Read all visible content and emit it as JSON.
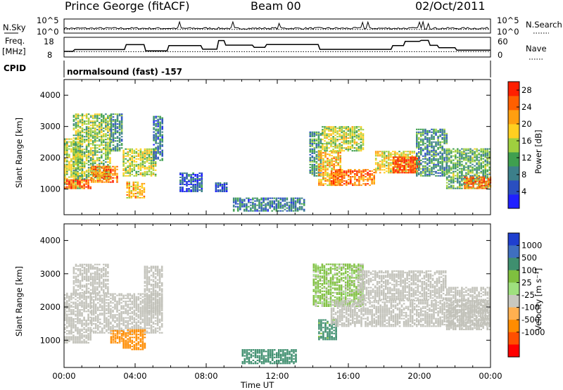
{
  "header": {
    "title": "Prince George (fitACF)",
    "beam": "Beam 00",
    "date": "02/Oct/2011"
  },
  "noise_panel": {
    "left_label": "N.Sky",
    "right_label": "N.Search",
    "left_top_tick": "10^5",
    "left_bottom_tick": "10^0",
    "right_top_tick": "10^5",
    "right_bottom_tick": "10^0",
    "scale": "log",
    "sky_level": 1.5,
    "search_level": 1.0,
    "spike_hours": [
      6.5,
      9.5,
      12.1,
      16.8,
      17.1,
      20.0,
      20.2,
      20.5
    ]
  },
  "freq_panel": {
    "left_label": "Freq.",
    "left_unit": "[MHz]",
    "left_top_tick": "18",
    "left_bottom_tick": "8",
    "right_top_tick": "60",
    "right_bottom_tick": "0",
    "right_label": "Nave",
    "freq_range_mhz": [
      8,
      18
    ],
    "nave_range": [
      0,
      60
    ],
    "freq_steps": [
      {
        "t": 0.0,
        "f": 10.5
      },
      {
        "t": 0.5,
        "f": 10.5
      },
      {
        "t": 0.6,
        "f": 11.6
      },
      {
        "t": 1.1,
        "f": 11.6
      },
      {
        "t": 3.4,
        "f": 11.6
      },
      {
        "t": 3.5,
        "f": 14.5
      },
      {
        "t": 4.5,
        "f": 14.5
      },
      {
        "t": 4.6,
        "f": 10.8
      },
      {
        "t": 5.8,
        "f": 10.8
      },
      {
        "t": 5.9,
        "f": 13.9
      },
      {
        "t": 7.7,
        "f": 13.9
      },
      {
        "t": 7.8,
        "f": 11.8
      },
      {
        "t": 8.6,
        "f": 11.8
      },
      {
        "t": 8.7,
        "f": 16.9
      },
      {
        "t": 9.0,
        "f": 16.9
      },
      {
        "t": 9.1,
        "f": 14.2
      },
      {
        "t": 10.6,
        "f": 14.2
      },
      {
        "t": 10.7,
        "f": 12.9
      },
      {
        "t": 11.3,
        "f": 12.9
      },
      {
        "t": 11.4,
        "f": 14.6
      },
      {
        "t": 14.3,
        "f": 14.6
      },
      {
        "t": 14.4,
        "f": 11.7
      },
      {
        "t": 18.4,
        "f": 11.7
      },
      {
        "t": 18.5,
        "f": 13.9
      },
      {
        "t": 19.1,
        "f": 13.9
      },
      {
        "t": 19.2,
        "f": 16.4
      },
      {
        "t": 20.0,
        "f": 16.4
      },
      {
        "t": 20.1,
        "f": 17.0
      },
      {
        "t": 20.5,
        "f": 17.0
      },
      {
        "t": 20.6,
        "f": 14.1
      },
      {
        "t": 21.0,
        "f": 14.1
      },
      {
        "t": 21.1,
        "f": 12.7
      },
      {
        "t": 22.0,
        "f": 12.7
      },
      {
        "t": 22.1,
        "f": 11.2
      },
      {
        "t": 24.0,
        "f": 11.2
      }
    ],
    "nave_level": 14
  },
  "cpid_panel": {
    "label": "CPID",
    "value": "normalsound (fast) -157"
  },
  "colors": {
    "power_scale": [
      "#1f1fff",
      "#2a4fc0",
      "#3c7f8a",
      "#3f9f4f",
      "#9fcf3f",
      "#ffcf20",
      "#ff9f10",
      "#ff5f00",
      "#ff1f00"
    ],
    "velocity_scale": [
      "#1f3fcf",
      "#3f6fbf",
      "#3f8f6f",
      "#7fbf3f",
      "#9fe07f",
      "#c8c8c0",
      "#ffb050",
      "#ff8c00",
      "#ff4f00",
      "#ff0000"
    ],
    "ground_scatter": "#c2c2ba"
  },
  "chart_data": [
    {
      "type": "heatmap",
      "title": "Power",
      "xlabel": "",
      "ylabel": "Slant Range [km]",
      "x_range_hours": [
        0,
        24
      ],
      "xticks": [
        "00:00",
        "04:00",
        "08:00",
        "12:00",
        "16:00",
        "20:00",
        "00:00"
      ],
      "ylim": [
        180,
        4500
      ],
      "yticks": [
        1000,
        2000,
        3000,
        4000
      ],
      "colorbar": {
        "label": "Power [dB]",
        "range": [
          0,
          30
        ],
        "ticks": [
          "4",
          "8",
          "12",
          "16",
          "20",
          "24",
          "28"
        ]
      },
      "echo_regions": [
        {
          "t0": 0.0,
          "t1": 1.0,
          "r0": 1000,
          "r1": 2600,
          "p": 16
        },
        {
          "t0": 0.0,
          "t1": 1.5,
          "r0": 1000,
          "r1": 1300,
          "p": 26
        },
        {
          "t0": 0.5,
          "t1": 2.6,
          "r0": 1300,
          "r1": 3400,
          "p": 14
        },
        {
          "t0": 1.5,
          "t1": 3.0,
          "r0": 1200,
          "r1": 1700,
          "p": 24
        },
        {
          "t0": 2.6,
          "t1": 3.3,
          "r0": 2200,
          "r1": 3400,
          "p": 10
        },
        {
          "t0": 3.3,
          "t1": 5.2,
          "r0": 1400,
          "r1": 2300,
          "p": 16
        },
        {
          "t0": 3.5,
          "t1": 4.5,
          "r0": 700,
          "r1": 1200,
          "p": 20
        },
        {
          "t0": 5.0,
          "t1": 5.6,
          "r0": 1900,
          "r1": 3300,
          "p": 8
        },
        {
          "t0": 6.5,
          "t1": 7.8,
          "r0": 900,
          "r1": 1500,
          "p": 6
        },
        {
          "t0": 8.5,
          "t1": 9.2,
          "r0": 900,
          "r1": 1200,
          "p": 6
        },
        {
          "t0": 9.5,
          "t1": 13.5,
          "r0": 280,
          "r1": 700,
          "p": 8
        },
        {
          "t0": 13.8,
          "t1": 14.5,
          "r0": 1400,
          "r1": 2800,
          "p": 10
        },
        {
          "t0": 14.3,
          "t1": 15.6,
          "r0": 1100,
          "r1": 2200,
          "p": 20
        },
        {
          "t0": 14.5,
          "t1": 16.9,
          "r0": 2200,
          "r1": 3000,
          "p": 16
        },
        {
          "t0": 15.0,
          "t1": 17.5,
          "r0": 1100,
          "r1": 1600,
          "p": 24
        },
        {
          "t0": 17.5,
          "t1": 19.8,
          "r0": 1500,
          "r1": 2200,
          "p": 18
        },
        {
          "t0": 18.5,
          "t1": 20.0,
          "r0": 1500,
          "r1": 2000,
          "p": 27
        },
        {
          "t0": 19.8,
          "t1": 21.5,
          "r0": 1400,
          "r1": 2900,
          "p": 10
        },
        {
          "t0": 21.5,
          "t1": 24.0,
          "r0": 1000,
          "r1": 2300,
          "p": 12
        },
        {
          "t0": 22.5,
          "t1": 24.0,
          "r0": 1000,
          "r1": 1400,
          "p": 24
        }
      ]
    },
    {
      "type": "heatmap",
      "title": "Velocity",
      "xlabel": "Time UT",
      "ylabel": "Slant Range [km]",
      "x_range_hours": [
        0,
        24
      ],
      "xticks": [
        "00:00",
        "04:00",
        "08:00",
        "12:00",
        "16:00",
        "20:00",
        "00:00"
      ],
      "ylim": [
        180,
        4500
      ],
      "yticks": [
        1000,
        2000,
        3000,
        4000
      ],
      "colorbar": {
        "label": "Velocity [m s⁻¹]",
        "ticks": [
          "1000",
          "500",
          "100",
          "25",
          "-25",
          "-100",
          "-500",
          "-1000"
        ]
      },
      "echo_regions": [
        {
          "t0": 0.0,
          "t1": 1.5,
          "r0": 900,
          "r1": 2400,
          "v": 0
        },
        {
          "t0": 1.5,
          "t1": 5.5,
          "r0": 1200,
          "r1": 2400,
          "v": 0
        },
        {
          "t0": 0.5,
          "t1": 2.5,
          "r0": 2400,
          "r1": 3300,
          "v": 0
        },
        {
          "t0": 3.3,
          "t1": 4.6,
          "r0": 700,
          "r1": 1300,
          "v": -200
        },
        {
          "t0": 2.6,
          "t1": 3.3,
          "r0": 900,
          "r1": 1300,
          "v": -150
        },
        {
          "t0": 4.5,
          "t1": 5.5,
          "r0": 1800,
          "r1": 3200,
          "v": 0
        },
        {
          "t0": 10.0,
          "t1": 13.0,
          "r0": 280,
          "r1": 700,
          "v": 300
        },
        {
          "t0": 14.3,
          "t1": 15.3,
          "r0": 1000,
          "r1": 1600,
          "v": 250
        },
        {
          "t0": 14.0,
          "t1": 16.8,
          "r0": 2000,
          "r1": 3300,
          "v": 80
        },
        {
          "t0": 15.0,
          "t1": 24.0,
          "r0": 1400,
          "r1": 2200,
          "v": 0
        },
        {
          "t0": 16.5,
          "t1": 21.5,
          "r0": 2200,
          "r1": 3100,
          "v": 0
        },
        {
          "t0": 21.5,
          "t1": 24.0,
          "r0": 1300,
          "r1": 2600,
          "v": 0
        }
      ]
    }
  ]
}
